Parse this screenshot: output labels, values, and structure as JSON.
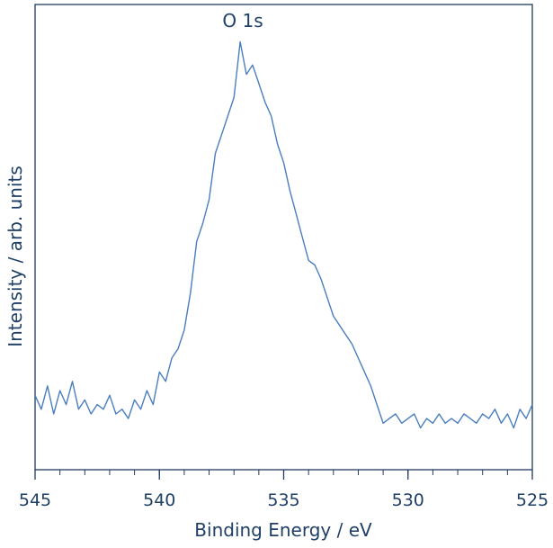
{
  "chart_data": {
    "type": "line",
    "annotation": "O 1s",
    "x_label": "Binding Energy / eV",
    "y_label": "Intensity / arb. units",
    "xlim": [
      545,
      525
    ],
    "xticks": [
      545,
      540,
      535,
      530,
      525
    ],
    "xminorticks": [
      545,
      544,
      543,
      542,
      541,
      540,
      539,
      538,
      537,
      536,
      535,
      534,
      533,
      532,
      531,
      530,
      529,
      528,
      527,
      526,
      525
    ],
    "ylim": [
      0,
      100
    ],
    "x": [
      545,
      544.75,
      544.5,
      544.25,
      544,
      543.75,
      543.5,
      543.25,
      543,
      542.75,
      542.5,
      542.25,
      542,
      541.75,
      541.5,
      541.25,
      541,
      540.75,
      540.5,
      540.25,
      540,
      539.75,
      539.5,
      539.25,
      539,
      538.75,
      538.5,
      538.25,
      538,
      537.75,
      537.5,
      537.25,
      537,
      536.75,
      536.5,
      536.25,
      536,
      535.75,
      535.5,
      535.25,
      535,
      534.75,
      534.5,
      534.25,
      534,
      533.75,
      533.5,
      533.25,
      533,
      532.75,
      532.5,
      532.25,
      532,
      531.75,
      531.5,
      531.25,
      531,
      530.75,
      530.5,
      530.25,
      530,
      529.75,
      529.5,
      529.25,
      529,
      528.75,
      528.5,
      528.25,
      528,
      527.75,
      527.5,
      527.25,
      527,
      526.75,
      526.5,
      526.25,
      526,
      525.75,
      525.5,
      525.25,
      525
    ],
    "series": [
      {
        "color": "#4a7ebf",
        "values": [
          16,
          13,
          18,
          12,
          17,
          14,
          19,
          13,
          15,
          12,
          14,
          13,
          16,
          12,
          13,
          11,
          15,
          13,
          17,
          14,
          21,
          19,
          24,
          26,
          30,
          38,
          49,
          53,
          58,
          68,
          72,
          76,
          80,
          92,
          85,
          87,
          83,
          79,
          76,
          70,
          66,
          60,
          55,
          50,
          45,
          44,
          41,
          37,
          33,
          31,
          29,
          27,
          24,
          21,
          18,
          14,
          10,
          11,
          12,
          10,
          11,
          12,
          9,
          11,
          10,
          12,
          10,
          11,
          10,
          12,
          11,
          10,
          12,
          11,
          13,
          10,
          12,
          9,
          13,
          11,
          14
        ]
      }
    ]
  }
}
